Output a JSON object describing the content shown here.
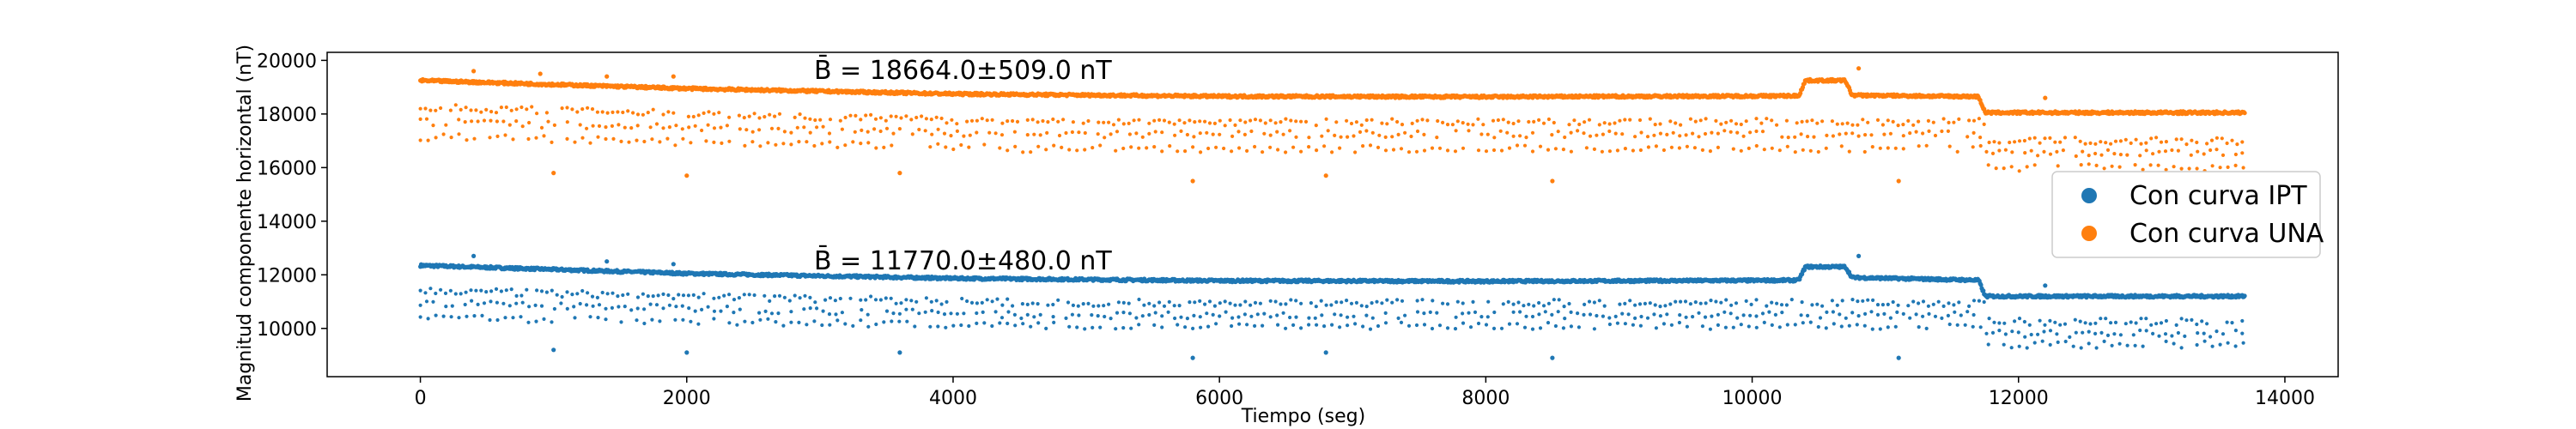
{
  "chart_data": {
    "type": "scatter",
    "title": "",
    "xlabel": "Tiempo (seg)",
    "ylabel": "Magnitud componente horizontal (nT)",
    "xlim": [
      -700,
      14400
    ],
    "ylim": [
      8200,
      20300
    ],
    "xticks": [
      0,
      2000,
      4000,
      6000,
      8000,
      10000,
      12000,
      14000
    ],
    "yticks": [
      10000,
      12000,
      14000,
      16000,
      18000,
      20000
    ],
    "xtick_labels": [
      "0",
      "2000",
      "4000",
      "6000",
      "8000",
      "10000",
      "12000",
      "14000"
    ],
    "ytick_labels": [
      "10000",
      "12000",
      "14000",
      "16000",
      "18000",
      "20000"
    ],
    "legend_position": "right",
    "series": [
      {
        "name": "Con curva IPT",
        "color": "#1f77b4",
        "mean_line": [
          [
            0,
            12350
          ],
          [
            2000,
            12050
          ],
          [
            4000,
            11870
          ],
          [
            6000,
            11780
          ],
          [
            8000,
            11760
          ],
          [
            10000,
            11790
          ],
          [
            10350,
            11800
          ],
          [
            10400,
            12300
          ],
          [
            10700,
            12300
          ],
          [
            10750,
            11900
          ],
          [
            11700,
            11800
          ],
          [
            11750,
            11200
          ],
          [
            13700,
            11200
          ]
        ],
        "lower_bands": [
          [
            11400,
            10950
          ],
          [
            10950,
            10500
          ],
          [
            10400,
            10100
          ]
        ],
        "outlier_points": [
          [
            400,
            12700
          ],
          [
            1000,
            9200
          ],
          [
            1400,
            12500
          ],
          [
            1900,
            12400
          ],
          [
            2000,
            9100
          ],
          [
            3600,
            9100
          ],
          [
            5800,
            8900
          ],
          [
            6800,
            9100
          ],
          [
            8500,
            8900
          ],
          [
            10800,
            12700
          ],
          [
            11100,
            8900
          ],
          [
            12200,
            11600
          ]
        ],
        "annotation": "B̄ = 11770.0±480.0 nT"
      },
      {
        "name": "Con curva UNA",
        "color": "#ff7f0e",
        "mean_line": [
          [
            0,
            19250
          ],
          [
            2000,
            18950
          ],
          [
            4000,
            18750
          ],
          [
            6000,
            18660
          ],
          [
            8000,
            18640
          ],
          [
            10000,
            18670
          ],
          [
            10350,
            18680
          ],
          [
            10400,
            19250
          ],
          [
            10700,
            19250
          ],
          [
            10750,
            18700
          ],
          [
            11700,
            18650
          ],
          [
            11750,
            18050
          ],
          [
            13700,
            18050
          ]
        ],
        "lower_bands": [
          [
            18250,
            17700
          ],
          [
            17700,
            17250
          ],
          [
            17150,
            16700
          ]
        ],
        "outlier_points": [
          [
            400,
            19600
          ],
          [
            900,
            19500
          ],
          [
            1000,
            15800
          ],
          [
            1400,
            19400
          ],
          [
            1900,
            19400
          ],
          [
            2000,
            15700
          ],
          [
            3600,
            15800
          ],
          [
            5800,
            15500
          ],
          [
            6800,
            15700
          ],
          [
            8500,
            15500
          ],
          [
            10800,
            19700
          ],
          [
            11100,
            15500
          ],
          [
            12200,
            18600
          ]
        ],
        "annotation": "B̄ = 18664.0±509.0 nT"
      }
    ]
  }
}
